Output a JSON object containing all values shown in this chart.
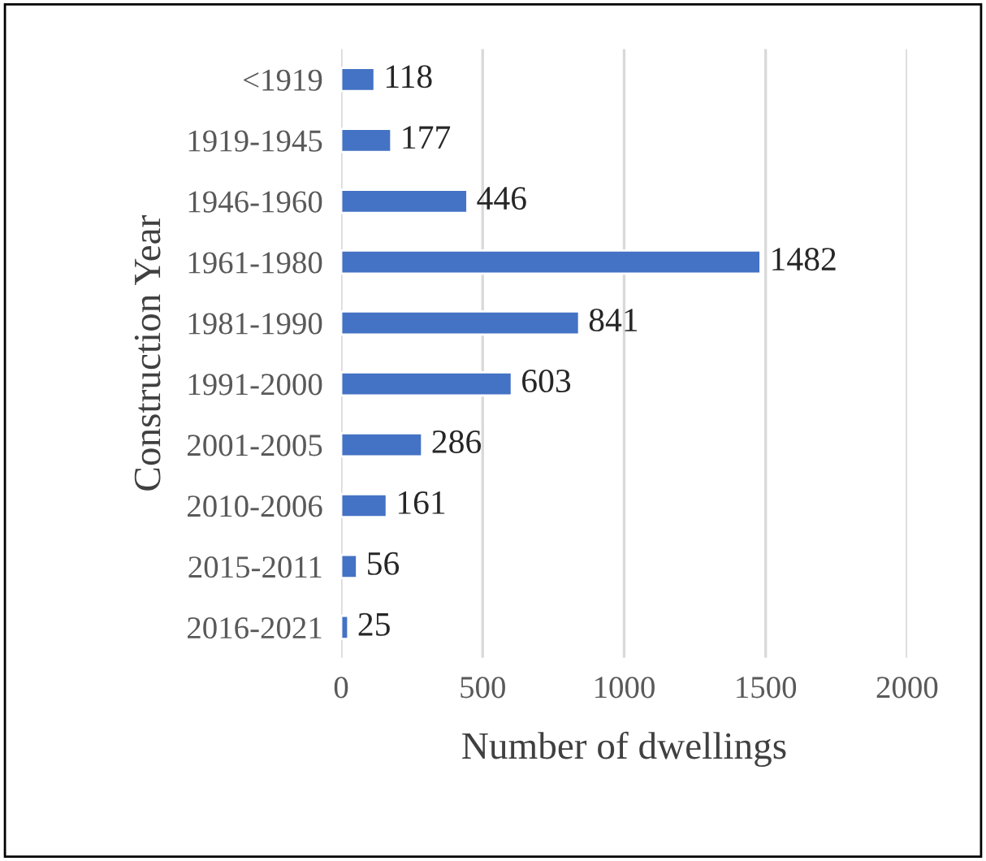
{
  "chart_data": {
    "type": "bar",
    "orientation": "horizontal",
    "categories": [
      "<1919",
      "1919-1945",
      "1946-1960",
      "1961-1980",
      "1981-1990",
      "1991-2000",
      "2001-2005",
      "2010-2006",
      "2015-2011",
      "2016-2021"
    ],
    "values": [
      118,
      177,
      446,
      1482,
      841,
      603,
      286,
      161,
      56,
      25
    ],
    "color": "#4472c4",
    "data_labels": true,
    "xlim": [
      0,
      2000
    ],
    "xticks": [
      0,
      500,
      1000,
      1500,
      2000
    ],
    "grid": "x",
    "xlabel": "Number of dwellings",
    "ylabel": "Construction Year"
  }
}
